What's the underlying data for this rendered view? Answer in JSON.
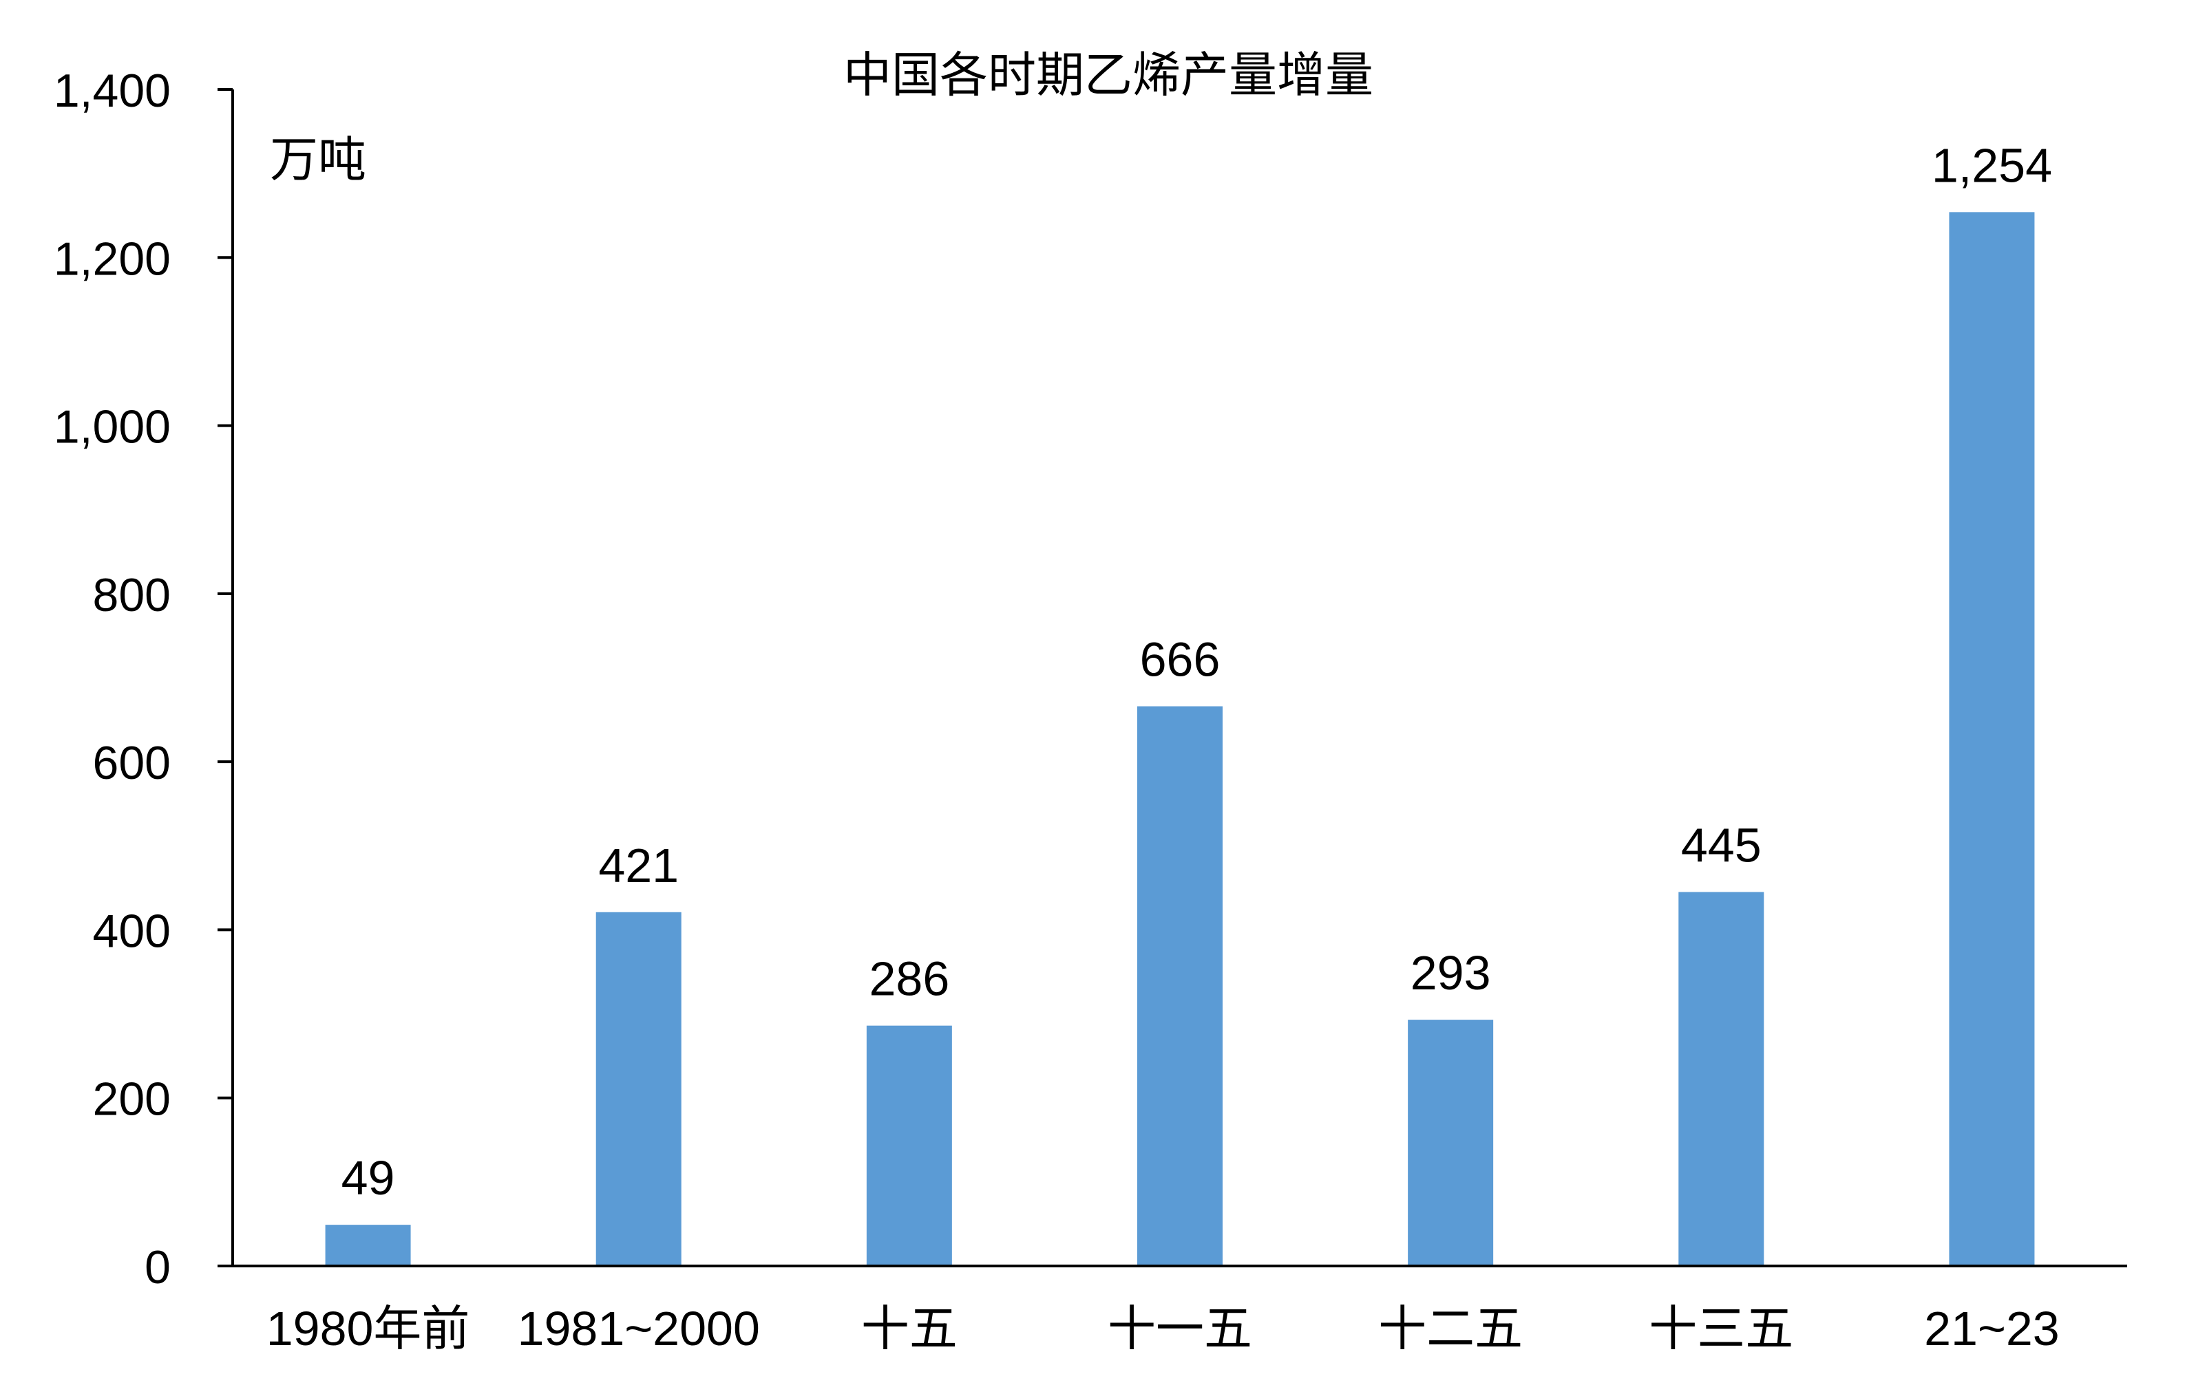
{
  "chart_data": {
    "type": "bar",
    "title": "中国各时期乙烯产量增量",
    "unit_label": "万吨",
    "categories": [
      "1980年前",
      "1981~2000",
      "十五",
      "十一五",
      "十二五",
      "十三五",
      "21~23"
    ],
    "values": [
      49,
      421,
      286,
      666,
      293,
      445,
      1254
    ],
    "value_labels": [
      "49",
      "421",
      "286",
      "666",
      "293",
      "445",
      "1,254"
    ],
    "ylim": [
      0,
      1400
    ],
    "yticks": [
      0,
      200,
      400,
      600,
      800,
      1000,
      1200,
      1400
    ],
    "ytick_labels": [
      "0",
      "200",
      "400",
      "600",
      "800",
      "1,000",
      "1,200",
      "1,400"
    ],
    "grid": false,
    "legend": "none",
    "bar_color": "#5B9BD5",
    "axis_color": "#000000"
  }
}
